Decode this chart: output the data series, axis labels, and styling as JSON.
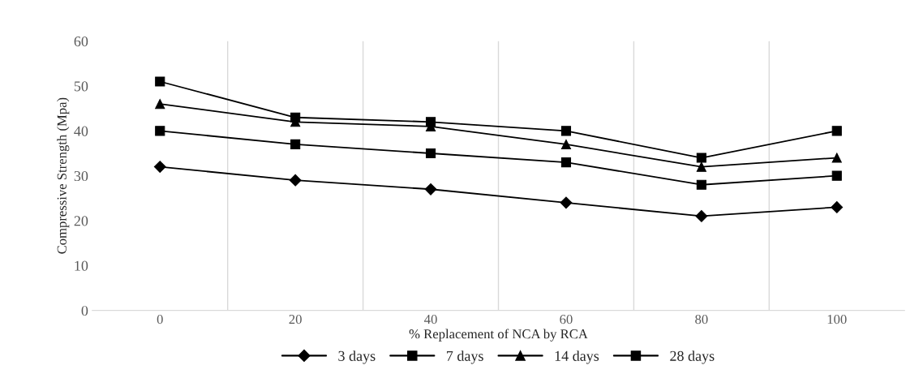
{
  "chart_data": {
    "type": "line",
    "xlabel": "% Replacement of NCA by RCA",
    "ylabel": "Compressive Strength (Mpa)",
    "categories": [
      "0",
      "20",
      "40",
      "60",
      "80",
      "100"
    ],
    "series": [
      {
        "name": "3 days",
        "color": "#000000",
        "marker": "diamond",
        "values": [
          32,
          29,
          27,
          24,
          21,
          23
        ]
      },
      {
        "name": "7 days",
        "color": "#000000",
        "marker": "square",
        "values": [
          40,
          37,
          35,
          33,
          28,
          30
        ]
      },
      {
        "name": "14 days",
        "color": "#000000",
        "marker": "triangle",
        "values": [
          46,
          42,
          41,
          37,
          32,
          34
        ]
      },
      {
        "name": "28 days",
        "color": "#000000",
        "marker": "square",
        "values": [
          51,
          43,
          42,
          40,
          34,
          40
        ]
      }
    ],
    "ylim": [
      0,
      60
    ],
    "yticks": [
      0,
      10,
      20,
      30,
      40,
      50,
      60
    ],
    "grid": "x",
    "legend": "bottom",
    "line_style": "solid"
  }
}
